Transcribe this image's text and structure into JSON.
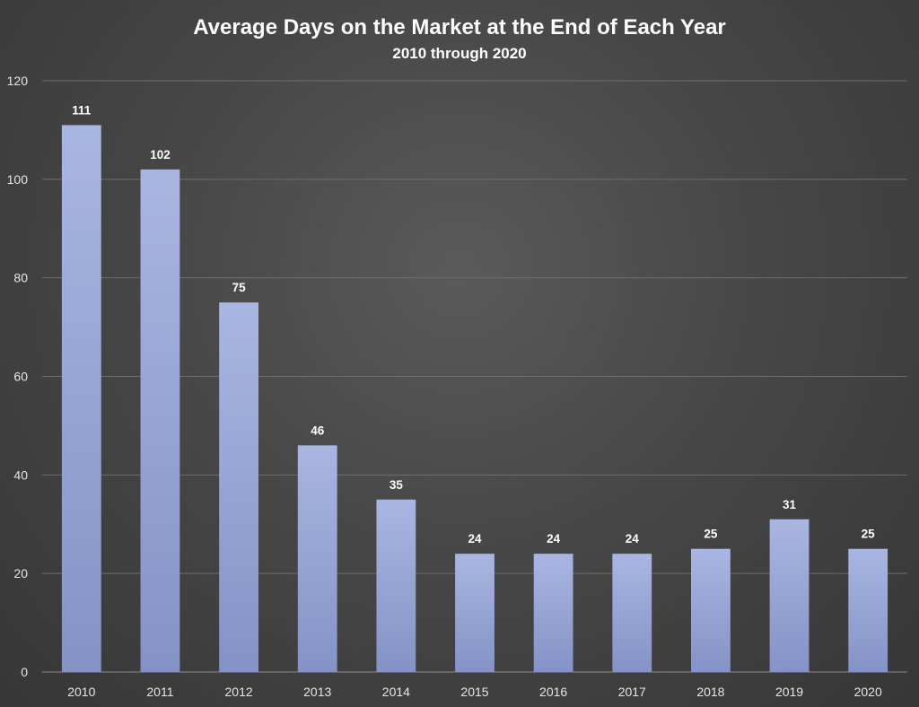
{
  "chart_data": {
    "type": "bar",
    "title": "Average Days on the Market at the End of Each Year",
    "subtitle": "2010 through 2020",
    "xlabel": "",
    "ylabel": "",
    "ylim": [
      0,
      120
    ],
    "yticks": [
      0,
      20,
      40,
      60,
      80,
      100,
      120
    ],
    "categories": [
      "2010",
      "2011",
      "2012",
      "2013",
      "2014",
      "2015",
      "2016",
      "2017",
      "2018",
      "2019",
      "2020"
    ],
    "values": [
      111,
      102,
      75,
      46,
      35,
      24,
      24,
      24,
      25,
      31,
      25
    ],
    "data_labels": true,
    "grid": true,
    "legend": "none",
    "colors": {
      "bar_top": "#a9b6e2",
      "bar_bottom": "#8493c6",
      "background": "#474747"
    }
  }
}
